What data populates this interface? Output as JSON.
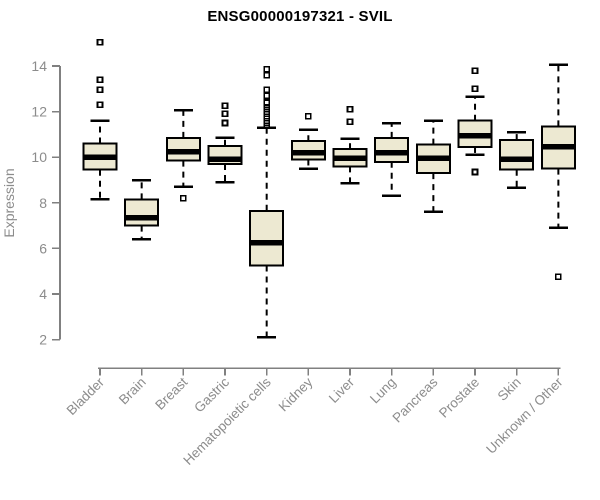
{
  "chart_data": {
    "type": "boxplot",
    "title": "ENSG00000197321 - SVIL",
    "xlabel": "",
    "ylabel": "Expression",
    "yticks": [
      2,
      4,
      6,
      8,
      10,
      12,
      14
    ],
    "ylim": [
      2,
      14
    ],
    "grid": false,
    "legend": "none",
    "whisker_line_style": "dashed",
    "outlier_marker": "open-square",
    "categories": [
      "Bladder",
      "Brain",
      "Breast",
      "Gastric",
      "Hematopoietic cells",
      "Kidney",
      "Liver",
      "Lung",
      "Pancreas",
      "Prostate",
      "Skin",
      "Unknown / Other"
    ],
    "boxes": [
      {
        "category": "Bladder",
        "low": 8.15,
        "q1": 9.45,
        "median": 10.0,
        "q3": 10.6,
        "high": 11.6,
        "outliers": [
          12.3,
          12.95,
          13.4,
          15.05
        ]
      },
      {
        "category": "Brain",
        "low": 6.4,
        "q1": 7.0,
        "median": 7.35,
        "q3": 8.15,
        "high": 9.0,
        "outliers": []
      },
      {
        "category": "Breast",
        "low": 8.7,
        "q1": 9.85,
        "median": 10.25,
        "q3": 10.85,
        "high": 12.05,
        "outliers": [
          8.2
        ]
      },
      {
        "category": "Gastric",
        "low": 8.9,
        "q1": 9.7,
        "median": 9.9,
        "q3": 10.5,
        "high": 10.85,
        "outliers": [
          11.5,
          11.9,
          12.25
        ]
      },
      {
        "category": "Hematopoietic cells",
        "low": 2.1,
        "q1": 5.25,
        "median": 6.25,
        "q3": 7.65,
        "high": 11.3,
        "outliers": [
          11.4,
          11.5,
          11.6,
          11.7,
          11.8,
          11.9,
          12.0,
          12.1,
          12.2,
          12.3,
          12.4,
          12.7,
          12.95,
          13.6,
          13.85
        ]
      },
      {
        "category": "Kidney",
        "low": 9.5,
        "q1": 9.9,
        "median": 10.2,
        "q3": 10.7,
        "high": 11.2,
        "outliers": [
          11.8
        ]
      },
      {
        "category": "Liver",
        "low": 8.85,
        "q1": 9.6,
        "median": 9.95,
        "q3": 10.35,
        "high": 10.8,
        "outliers": [
          11.55,
          12.1
        ]
      },
      {
        "category": "Lung",
        "low": 8.3,
        "q1": 9.8,
        "median": 10.2,
        "q3": 10.85,
        "high": 11.5,
        "outliers": []
      },
      {
        "category": "Pancreas",
        "low": 7.6,
        "q1": 9.3,
        "median": 9.95,
        "q3": 10.55,
        "high": 11.6,
        "outliers": []
      },
      {
        "category": "Prostate",
        "low": 10.1,
        "q1": 10.45,
        "median": 10.95,
        "q3": 11.6,
        "high": 12.65,
        "outliers": [
          9.35,
          13.0,
          13.8
        ]
      },
      {
        "category": "Skin",
        "low": 8.65,
        "q1": 9.45,
        "median": 9.9,
        "q3": 10.75,
        "high": 11.1,
        "outliers": []
      },
      {
        "category": "Unknown / Other",
        "low": 6.9,
        "q1": 9.5,
        "median": 10.45,
        "q3": 11.35,
        "high": 14.05,
        "outliers": [
          4.75
        ]
      }
    ],
    "colors": {
      "box_fill": "#EDE9D2",
      "box_border": "#000000",
      "median": "#000000",
      "whisker": "#000000",
      "outlier": "#000000",
      "axis_line": "#808080",
      "tick_label": "#8C8C8C",
      "title": "#000000",
      "background": "#FFFFFF"
    }
  }
}
